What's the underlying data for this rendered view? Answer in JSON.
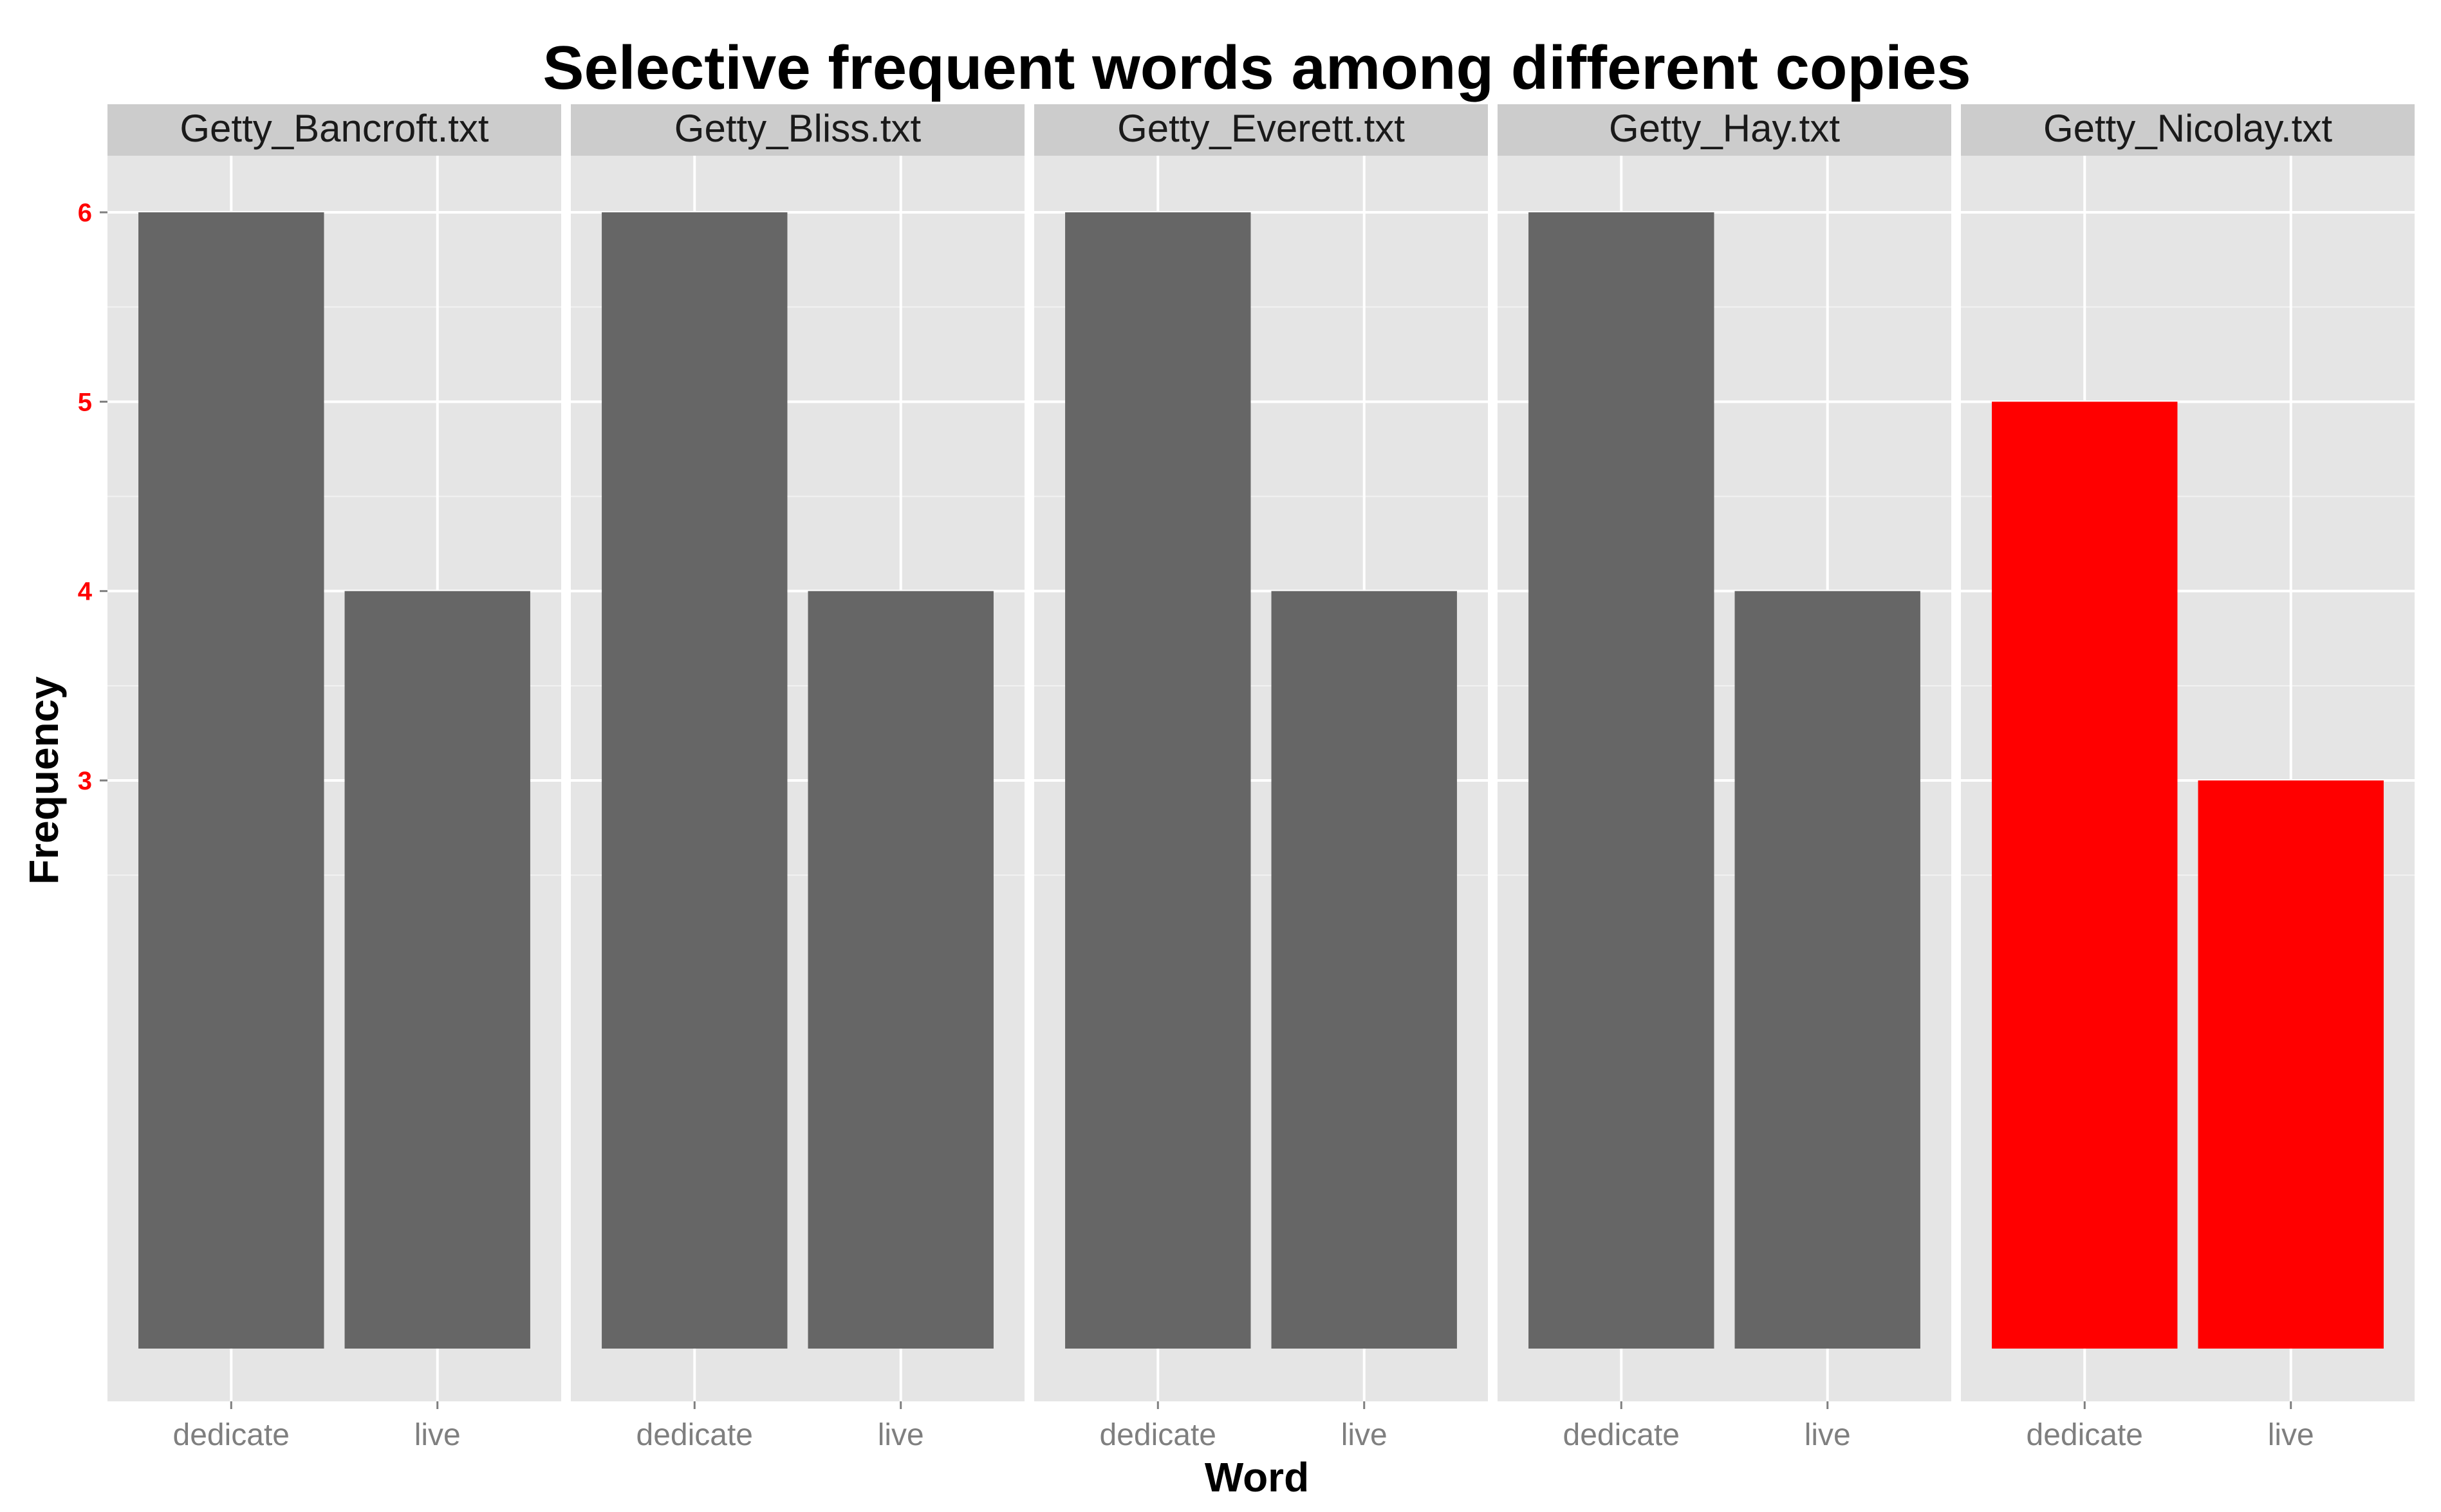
{
  "chart_data": {
    "type": "bar",
    "title": "Selective frequent words among different copies",
    "xlabel": "Word",
    "ylabel": "Frequency",
    "categories": [
      "dedicate",
      "live"
    ],
    "y_ticks": [
      3,
      4,
      5,
      6
    ],
    "ylim": [
      0,
      6.3
    ],
    "baseline": 0,
    "grid": true,
    "legend": "none",
    "facets": [
      {
        "name": "Getty_Bancroft.txt",
        "values": [
          6,
          4
        ],
        "color": "#666666"
      },
      {
        "name": "Getty_Bliss.txt",
        "values": [
          6,
          4
        ],
        "color": "#666666"
      },
      {
        "name": "Getty_Everett.txt",
        "values": [
          6,
          4
        ],
        "color": "#666666"
      },
      {
        "name": "Getty_Hay.txt",
        "values": [
          6,
          4
        ],
        "color": "#666666"
      },
      {
        "name": "Getty_Nicolay.txt",
        "values": [
          5,
          3
        ],
        "color": "#ff0000"
      }
    ],
    "colors": {
      "panel_bg": "#e5e5e5",
      "strip_bg": "#cccccc",
      "grid_major": "#ffffff",
      "grid_minor": "#f2f2f2",
      "ytick_label": "#ff0000"
    }
  }
}
